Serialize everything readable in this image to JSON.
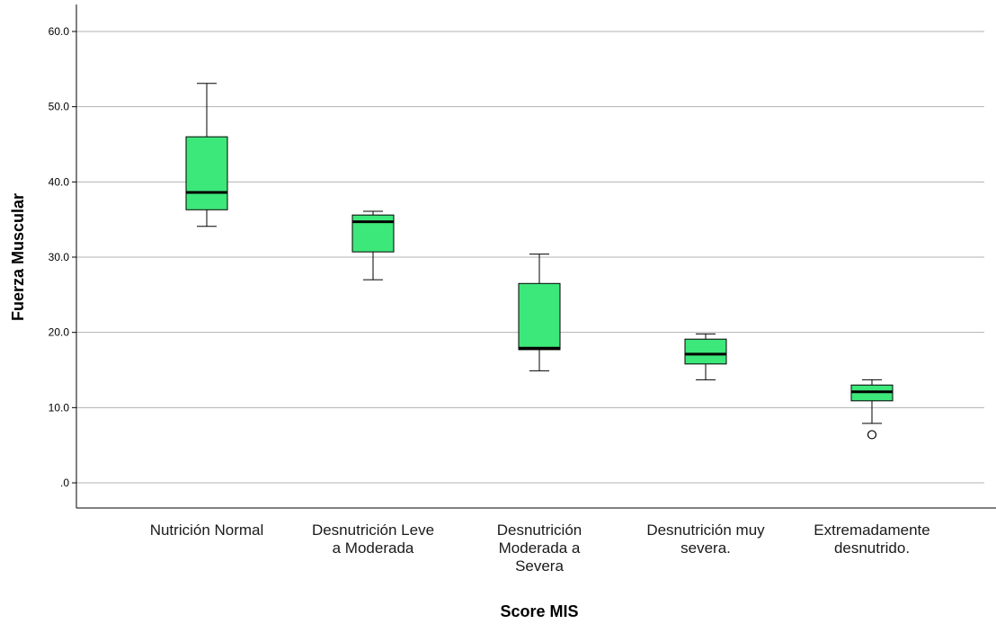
{
  "chart_data": {
    "type": "boxplot",
    "title": "",
    "xlabel": "Score MIS",
    "ylabel": "Fuerza Muscular",
    "ylim": [
      -3,
      63
    ],
    "yticks": [
      0,
      10,
      20,
      30,
      40,
      50,
      60
    ],
    "ytick_labels": [
      ".0",
      "10.0",
      "20.0",
      "30.0",
      "40.0",
      "50.0",
      "60.0"
    ],
    "grid": "horizontal",
    "box_color": "#3de87a",
    "categories": [
      "Nutrición Normal",
      "Desnutrición Leve a Moderada",
      "Desnutrición Moderada a Severa",
      "Desnutrición muy severa.",
      "Extremadamente desnutrido."
    ],
    "category_label_lines": [
      [
        "Nutrición Normal"
      ],
      [
        "Desnutrición Leve",
        "a Moderada"
      ],
      [
        "Desnutrición",
        "Moderada a",
        "Severa"
      ],
      [
        "Desnutrición muy",
        "severa."
      ],
      [
        "Extremadamente",
        "desnutrido."
      ]
    ],
    "boxes": [
      {
        "whisker_low": 34.1,
        "q1": 36.3,
        "median": 38.6,
        "q3": 46.0,
        "whisker_high": 53.1,
        "outliers": []
      },
      {
        "whisker_low": 27.0,
        "q1": 30.7,
        "median": 34.7,
        "q3": 35.6,
        "whisker_high": 36.1,
        "outliers": []
      },
      {
        "whisker_low": 14.9,
        "q1": 17.7,
        "median": 17.9,
        "q3": 26.5,
        "whisker_high": 30.4,
        "outliers": []
      },
      {
        "whisker_low": 13.7,
        "q1": 15.8,
        "median": 17.1,
        "q3": 19.1,
        "whisker_high": 19.8,
        "outliers": []
      },
      {
        "whisker_low": 7.9,
        "q1": 10.9,
        "median": 12.1,
        "q3": 13.0,
        "whisker_high": 13.7,
        "outliers": [
          6.4
        ]
      }
    ]
  }
}
